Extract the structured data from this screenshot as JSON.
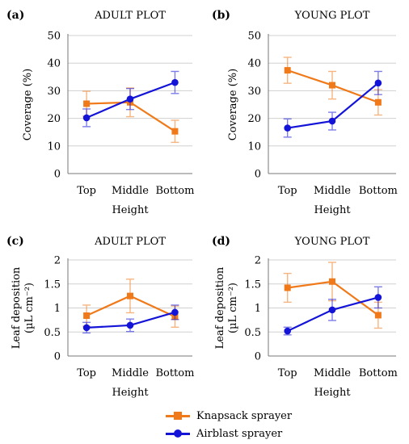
{
  "series_styles": [
    {
      "name": "Knapsack sprayer",
      "color": "#f07a1a",
      "marker": "square"
    },
    {
      "name": "Airblast sprayer",
      "color": "#1414d8",
      "marker": "circle"
    }
  ],
  "colors": {
    "grid": "#d0d0d0",
    "axis": "#777777",
    "error_bar_alpha": 0.55
  },
  "chart_data": [
    {
      "panel": "(a)",
      "type": "line",
      "title": "ADULT PLOT",
      "xlabel": "Height",
      "ylabel": "Coverage (%)",
      "ylabel_lines": [
        "Coverage (%)"
      ],
      "categories": [
        "Top",
        "Middle",
        "Bottom"
      ],
      "ylim": [
        0,
        50
      ],
      "yticks": [
        0,
        10,
        20,
        30,
        40,
        50
      ],
      "ytick_labels": [
        "0",
        "10",
        "20",
        "30",
        "40",
        "50"
      ],
      "grid": true,
      "series": [
        {
          "name": "Knapsack sprayer",
          "values": [
            25.3,
            25.8,
            15.3
          ],
          "errors": [
            4.5,
            5.2,
            4.0
          ]
        },
        {
          "name": "Airblast sprayer",
          "values": [
            20.2,
            27.0,
            33.0
          ],
          "errors": [
            3.2,
            3.8,
            4.0
          ]
        }
      ]
    },
    {
      "panel": "(b)",
      "type": "line",
      "title": "YOUNG PLOT",
      "xlabel": "Height",
      "ylabel": "Coverage (%)",
      "ylabel_lines": [
        "Coverage (%)"
      ],
      "categories": [
        "Top",
        "Middle",
        "Bottom"
      ],
      "ylim": [
        0,
        50
      ],
      "yticks": [
        0,
        10,
        20,
        30,
        40,
        50
      ],
      "ytick_labels": [
        "0",
        "10",
        "20",
        "30",
        "40",
        "50"
      ],
      "grid": true,
      "series": [
        {
          "name": "Knapsack sprayer",
          "values": [
            37.4,
            32.0,
            25.8
          ],
          "errors": [
            4.7,
            5.0,
            4.6
          ]
        },
        {
          "name": "Airblast sprayer",
          "values": [
            16.5,
            19.0,
            32.8
          ],
          "errors": [
            3.3,
            3.2,
            4.2
          ]
        }
      ]
    },
    {
      "panel": "(c)",
      "type": "line",
      "title": "ADULT PLOT",
      "xlabel": "Height",
      "ylabel": "Leaf deposition (µL cm⁻²)",
      "ylabel_lines": [
        "Leaf deposition",
        "(µL cm⁻²)"
      ],
      "categories": [
        "Top",
        "Middle",
        "Bottom"
      ],
      "ylim": [
        0,
        2
      ],
      "yticks": [
        0,
        0.5,
        1,
        1.5,
        2
      ],
      "ytick_labels": [
        "0",
        "0.5",
        "1",
        "1.5",
        "2"
      ],
      "grid": true,
      "series": [
        {
          "name": "Knapsack sprayer",
          "values": [
            0.84,
            1.25,
            0.82
          ],
          "errors": [
            0.22,
            0.35,
            0.22
          ]
        },
        {
          "name": "Airblast sprayer",
          "values": [
            0.59,
            0.64,
            0.91
          ],
          "errors": [
            0.11,
            0.13,
            0.15
          ]
        }
      ]
    },
    {
      "panel": "(d)",
      "type": "line",
      "title": "YOUNG PLOT",
      "xlabel": "Height",
      "ylabel": "Leaf deposition (µL cm⁻²)",
      "ylabel_lines": [
        "Leaf deposition",
        "(µL cm⁻²)"
      ],
      "categories": [
        "Top",
        "Middle",
        "Bottom"
      ],
      "ylim": [
        0,
        2
      ],
      "yticks": [
        0,
        0.5,
        1,
        1.5,
        2
      ],
      "ytick_labels": [
        "0",
        "0.5",
        "1",
        "1.5",
        "2"
      ],
      "grid": true,
      "series": [
        {
          "name": "Knapsack sprayer",
          "values": [
            1.42,
            1.55,
            0.85
          ],
          "errors": [
            0.3,
            0.4,
            0.27
          ]
        },
        {
          "name": "Airblast sprayer",
          "values": [
            0.52,
            0.96,
            1.22
          ],
          "errors": [
            0.08,
            0.22,
            0.22
          ]
        }
      ]
    }
  ],
  "legend": {
    "placement": "bottom-center",
    "items": [
      "Knapsack sprayer",
      "Airblast sprayer"
    ]
  }
}
